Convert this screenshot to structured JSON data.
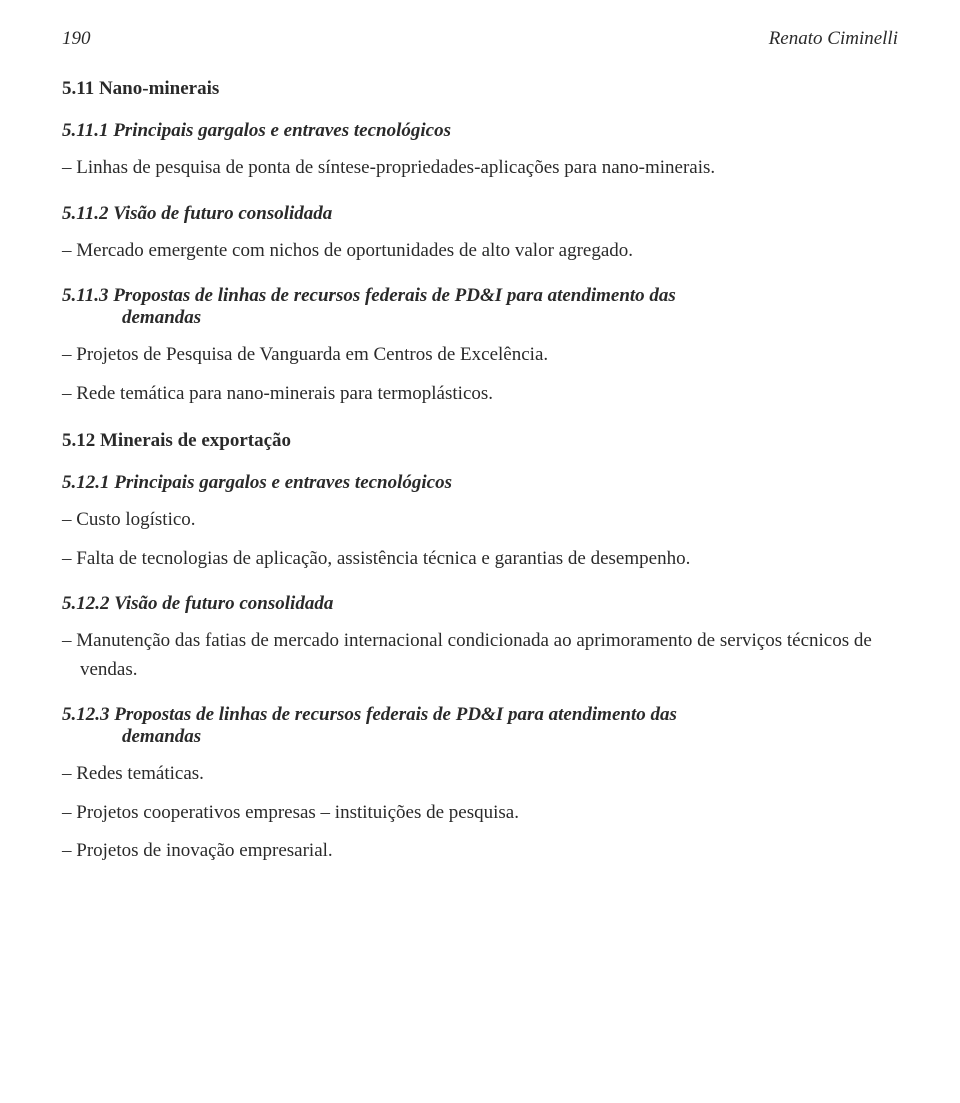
{
  "header": {
    "page_number": "190",
    "author": "Renato Ciminelli"
  },
  "sections": {
    "s511": {
      "heading": "5.11 Nano-minerais",
      "sub1": {
        "heading": "5.11.1 Principais gargalos e entraves tecnológicos",
        "item1": "Linhas de pesquisa de ponta de síntese-propriedades-aplicações para nano-minerais."
      },
      "sub2": {
        "heading": "5.11.2 Visão de futuro consolidada",
        "item1": "Mercado emergente com nichos de oportunidades de alto valor agregado."
      },
      "sub3": {
        "heading_l1": "5.11.3 Propostas de linhas de recursos federais de PD&I para atendimento das",
        "heading_l2": "demandas",
        "item1": "Projetos de Pesquisa de Vanguarda em Centros de Excelência.",
        "item2": "Rede temática para nano-minerais para termoplásticos."
      }
    },
    "s512": {
      "heading": "5.12 Minerais de exportação",
      "sub1": {
        "heading": "5.12.1 Principais gargalos e entraves tecnológicos",
        "item1": "Custo logístico.",
        "item2": "Falta de tecnologias de aplicação, assistência técnica e garantias de desempenho."
      },
      "sub2": {
        "heading": "5.12.2 Visão de futuro consolidada",
        "item1": "Manutenção das fatias de mercado internacional condicionada ao aprimoramento de serviços técnicos de vendas."
      },
      "sub3": {
        "heading_l1": "5.12.3 Propostas de linhas de recursos federais de PD&I para atendimento das",
        "heading_l2": "demandas",
        "item1": "Redes temáticas.",
        "item2": "Projetos cooperativos empresas – instituições de pesquisa.",
        "item3": "Projetos de inovação empresarial."
      }
    }
  }
}
